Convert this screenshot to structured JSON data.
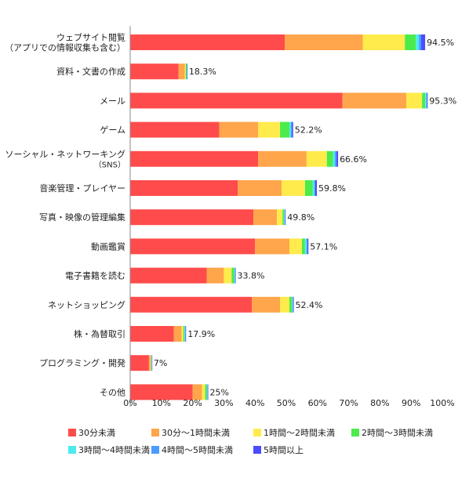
{
  "chart_data": {
    "type": "bar",
    "orientation": "horizontal",
    "stacked": true,
    "categories": [
      [
        "ウェブサイト閲覧",
        "（アプリでの情報収集も含む）"
      ],
      [
        "資料・文書の作成"
      ],
      [
        "メール"
      ],
      [
        "ゲーム"
      ],
      [
        "ソーシャル・ネットワーキング",
        "（SNS）"
      ],
      [
        "音楽管理・プレイヤー"
      ],
      [
        "写真・映像の管理編集"
      ],
      [
        "動画鑑賞"
      ],
      [
        "電子書籍を読む"
      ],
      [
        "ネットショッピング"
      ],
      [
        "株・為替取引"
      ],
      [
        "プログラミング・開発"
      ],
      [
        "その他"
      ]
    ],
    "series": [
      {
        "name": "30分未満",
        "color": "#ff4b4b",
        "values": [
          49.5,
          15.5,
          68.0,
          28.5,
          41.0,
          34.5,
          39.5,
          40.0,
          24.5,
          39.0,
          14.0,
          6.0,
          20.0
        ]
      },
      {
        "name": "30分〜1時間未満",
        "color": "#ffa54b",
        "values": [
          25.0,
          2.0,
          20.5,
          12.5,
          15.5,
          14.0,
          7.5,
          11.0,
          5.5,
          9.0,
          2.5,
          0.5,
          3.0
        ]
      },
      {
        "name": "1時間〜2時間未満",
        "color": "#ffeb4b",
        "values": [
          13.5,
          0.3,
          5.0,
          7.0,
          6.5,
          7.5,
          1.8,
          4.0,
          2.5,
          3.0,
          0.5,
          0.2,
          1.0
        ]
      },
      {
        "name": "2時間〜3時間未満",
        "color": "#4beb4b",
        "values": [
          3.5,
          0.3,
          1.0,
          3.0,
          2.0,
          2.5,
          0.5,
          1.0,
          0.8,
          0.8,
          0.4,
          0.1,
          0.5
        ]
      },
      {
        "name": "3時間〜4時間未満",
        "color": "#4bebeb",
        "values": [
          1.0,
          0.1,
          0.4,
          0.5,
          0.6,
          0.5,
          0.2,
          0.5,
          0.2,
          0.2,
          0.2,
          0.1,
          0.2
        ]
      },
      {
        "name": "4時間〜5時間未満",
        "color": "#4b9bff",
        "values": [
          0.7,
          0.05,
          0.2,
          0.3,
          0.5,
          0.3,
          0.15,
          0.3,
          0.15,
          0.2,
          0.15,
          0.05,
          0.15
        ]
      },
      {
        "name": "5時間以上",
        "color": "#4b4bff",
        "values": [
          1.3,
          0.05,
          0.2,
          0.4,
          0.5,
          0.5,
          0.15,
          0.3,
          0.15,
          0.2,
          0.15,
          0.05,
          0.15
        ]
      }
    ],
    "totals": [
      94.5,
      18.3,
      95.3,
      52.2,
      66.6,
      59.8,
      49.8,
      57.1,
      33.8,
      52.4,
      17.9,
      7,
      25
    ],
    "total_labels": [
      "94.5%",
      "18.3%",
      "95.3%",
      "52.2%",
      "66.6%",
      "59.8%",
      "49.8%",
      "57.1%",
      "33.8%",
      "52.4%",
      "17.9%",
      "7%",
      "25%"
    ],
    "xlim": [
      0,
      100
    ],
    "xticks": [
      0,
      10,
      20,
      30,
      40,
      50,
      60,
      70,
      80,
      90,
      100
    ],
    "xtick_labels": [
      "0%",
      "10%",
      "20%",
      "30%",
      "40%",
      "50%",
      "60%",
      "70%",
      "80%",
      "90%",
      "100%"
    ],
    "title": "",
    "xlabel": "",
    "ylabel": "",
    "grid": false,
    "legend_position": "bottom"
  }
}
